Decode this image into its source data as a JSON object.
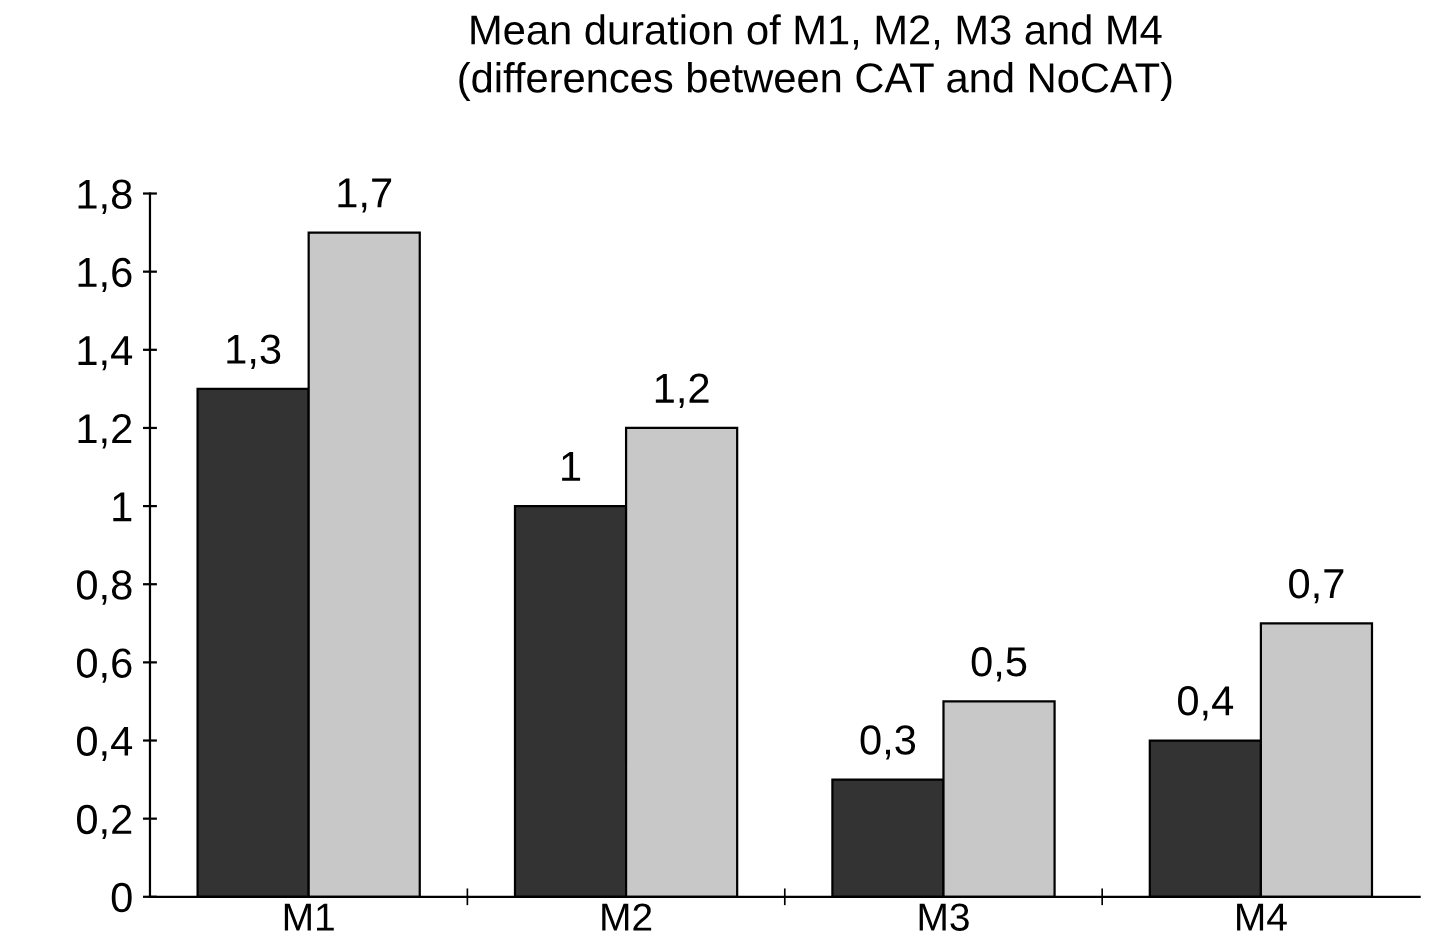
{
  "chart_data": {
    "type": "bar",
    "title": "Mean duration of M1, M2, M3 and M4\n(differences between CAT and NoCAT)",
    "categories": [
      "M1",
      "M2",
      "M3",
      "M4"
    ],
    "series": [
      {
        "color": "#333333",
        "values": [
          1.3,
          1.0,
          0.3,
          0.4
        ],
        "value_labels": [
          "1,3",
          "1",
          "0,3",
          "0,4"
        ]
      },
      {
        "color": "#c8c8c8",
        "values": [
          1.7,
          1.2,
          0.5,
          0.7
        ],
        "value_labels": [
          "1,7",
          "1,2",
          "0,5",
          "0,7"
        ]
      }
    ],
    "ylim": [
      0,
      1.8
    ],
    "yticks": [
      0,
      {
        "value": 0.2,
        "label": "0,2"
      },
      {
        "value": 0.4,
        "label": "0,4"
      },
      {
        "value": 0.6,
        "label": "0,6"
      },
      {
        "value": 0.8,
        "label": "0,8"
      },
      1,
      {
        "value": 1.2,
        "label": "1,2"
      },
      {
        "value": 1.4,
        "label": "1,4"
      },
      {
        "value": 1.6,
        "label": "1,6"
      },
      {
        "value": 1.8,
        "label": "1,8"
      }
    ],
    "grid": false,
    "legend": false
  }
}
